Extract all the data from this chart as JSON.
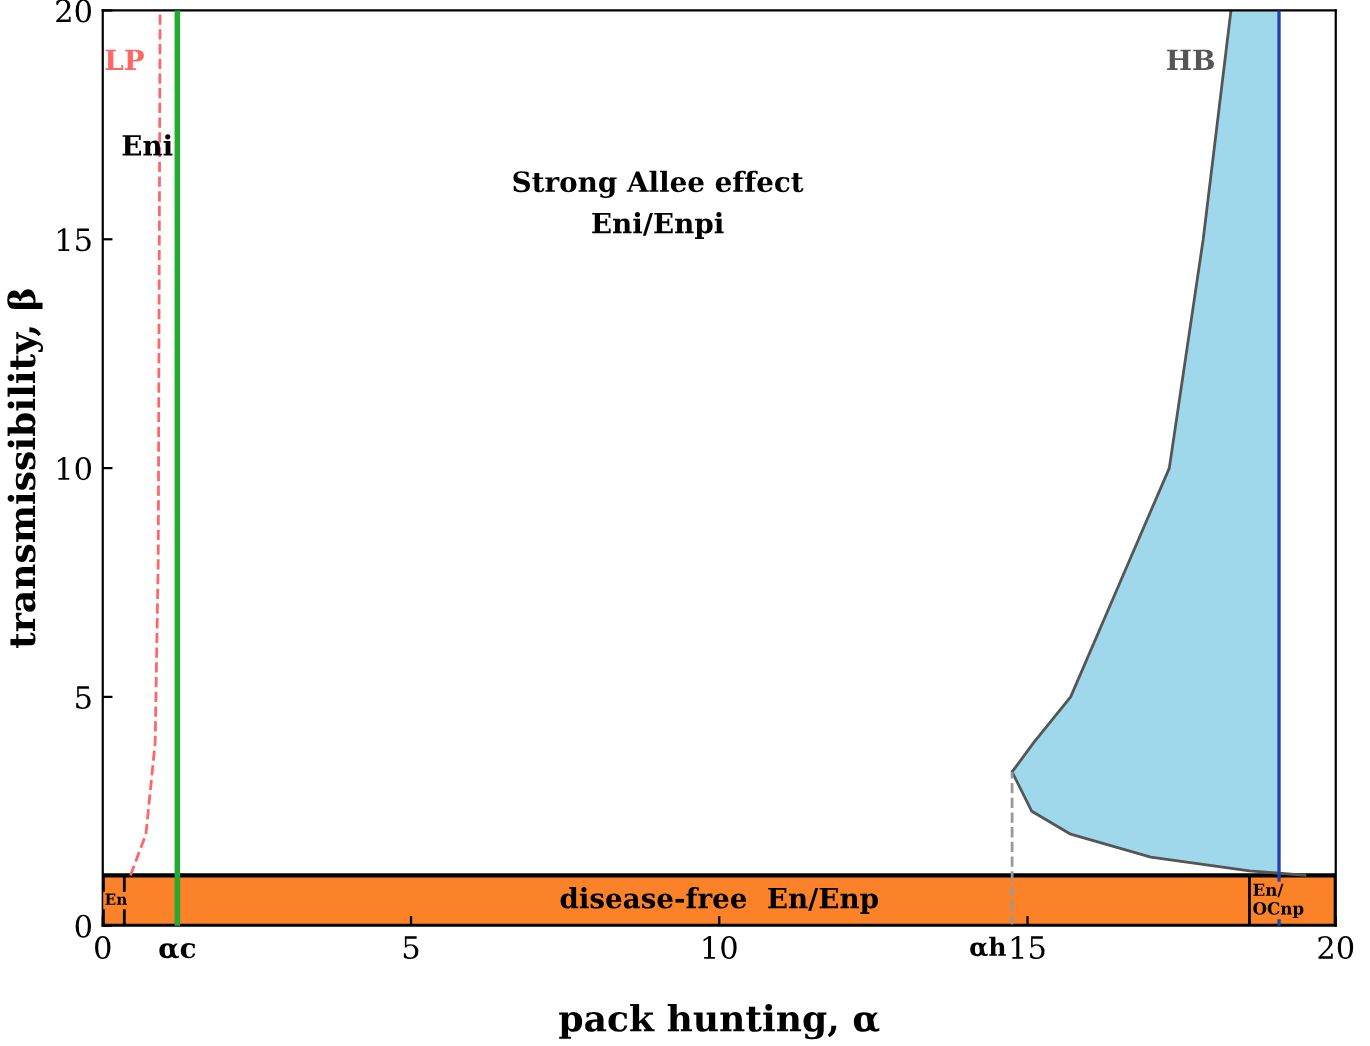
{
  "chart_data": {
    "type": "line",
    "xlabel": "pack hunting, α",
    "ylabel": "transmissibility, β",
    "xlim": [
      0,
      20
    ],
    "ylim": [
      0,
      20
    ],
    "xticks": [
      0,
      5,
      10,
      15,
      20
    ],
    "yticks": [
      0,
      5,
      10,
      15,
      20
    ],
    "grid": false,
    "legend": false,
    "series": [
      {
        "type": "area",
        "color": "#9fd8ea",
        "x": [
          18.3,
          17.85,
          17.3,
          16.5,
          15.7,
          15.1,
          14.75,
          15.07,
          15.7,
          17.0,
          18.6,
          19.08,
          19.08
        ],
        "values": [
          20,
          15,
          10,
          7.5,
          5,
          4,
          3.36,
          2.5,
          2,
          1.5,
          1.2,
          1.15,
          20
        ]
      },
      {
        "name": "HB",
        "color": "#555555",
        "line_style": "solid",
        "x": [
          18.3,
          17.85,
          17.3,
          16.5,
          15.7,
          15.1,
          14.75,
          15.07,
          15.7,
          17.0,
          18.6,
          19.5
        ],
        "values": [
          20,
          15,
          10,
          7.5,
          5,
          4,
          3.36,
          2.5,
          2,
          1.5,
          1.2,
          1.1
        ]
      },
      {
        "name": "LP",
        "color": "#ff6666",
        "line_style": "dashed",
        "x": [
          0.45,
          0.7,
          0.85,
          0.9,
          0.93
        ],
        "values": [
          1.1,
          2,
          4,
          8,
          20
        ]
      },
      {
        "color": "#999999",
        "line_style": "dashed",
        "x": [
          14.75,
          14.75
        ],
        "values": [
          0,
          3.36
        ]
      },
      {
        "color": "#000000",
        "line_style": "solid",
        "x": [
          0.35,
          0.35
        ],
        "values": [
          0,
          1.1
        ]
      },
      {
        "color": "#000000",
        "line_style": "solid",
        "x": [
          18.6,
          18.6
        ],
        "values": [
          0,
          1.1
        ]
      }
    ],
    "ref_lines": [
      {
        "axis": "x",
        "value": 1.21,
        "label": "αc",
        "color": "#22aa33"
      },
      {
        "axis": "x",
        "value": 19.08,
        "color": "#2244aa"
      }
    ],
    "bands": [
      {
        "axis": "y",
        "from": 0,
        "to": 1.1,
        "label": "disease-free  En/Enp",
        "color": "#fb8228"
      }
    ],
    "annotations": [
      "Eni",
      "Strong Allee effect",
      "Eni/Enpi",
      "En",
      "En/\nOCnp",
      {
        "text": "αh",
        "x": 14.75,
        "y": 0
      }
    ]
  }
}
